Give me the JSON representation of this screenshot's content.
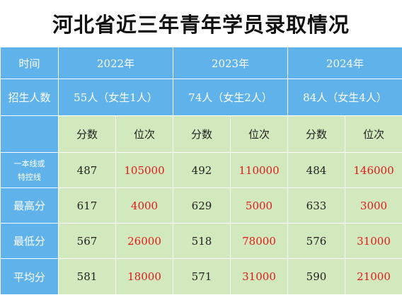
{
  "title": "河北省近三年青年学员录取情况",
  "header": {
    "time_label": "时间",
    "quota_label": "招生人数",
    "years": [
      "2022年",
      "2023年",
      "2024年"
    ],
    "quotas": [
      "55人（女生1人）",
      "74人（女生2人）",
      "84人（女生4人）"
    ],
    "score_label": "分数",
    "rank_label": "位次"
  },
  "rows": [
    {
      "label_line1": "一本线或",
      "label_line2": "特控线",
      "cells": [
        {
          "score": "487",
          "rank": "105000"
        },
        {
          "score": "492",
          "rank": "110000"
        },
        {
          "score": "484",
          "rank": "146000"
        }
      ]
    },
    {
      "label": "最高分",
      "cells": [
        {
          "score": "617",
          "rank": "4000"
        },
        {
          "score": "629",
          "rank": "5000"
        },
        {
          "score": "633",
          "rank": "3000"
        }
      ]
    },
    {
      "label": "最低分",
      "cells": [
        {
          "score": "567",
          "rank": "26000"
        },
        {
          "score": "518",
          "rank": "78000"
        },
        {
          "score": "576",
          "rank": "31000"
        }
      ]
    },
    {
      "label": "平均分",
      "cells": [
        {
          "score": "581",
          "rank": "18000"
        },
        {
          "score": "571",
          "rank": "31000"
        },
        {
          "score": "590",
          "rank": "21000"
        }
      ]
    }
  ],
  "colors": {
    "header_blue": "#5fb3ea",
    "cell_green": "#d2e8bd",
    "rank_red": "#e21a1a"
  }
}
